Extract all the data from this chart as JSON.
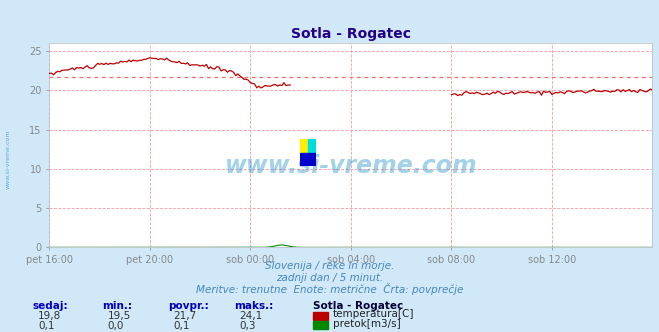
{
  "title": "Sotla - Rogatec",
  "bg_color": "#d0e8f8",
  "plot_bg_color": "#ffffff",
  "grid_color": "#e8a0a0",
  "x_ticks_labels": [
    "pet 16:00",
    "pet 20:00",
    "sob 00:00",
    "sob 04:00",
    "sob 08:00",
    "sob 12:00"
  ],
  "x_ticks_pos": [
    0.0,
    0.1667,
    0.3333,
    0.5,
    0.6667,
    0.8333
  ],
  "y_ticks": [
    0,
    5,
    10,
    15,
    20,
    25
  ],
  "ylim": [
    0,
    26
  ],
  "xlim": [
    0,
    1
  ],
  "temp_color": "#bb0000",
  "flow_color": "#008800",
  "avg_line_color": "#ff6666",
  "watermark_color": "#3399cc",
  "subtitle1": "Slovenija / reke in morje.",
  "subtitle2": "zadnji dan / 5 minut.",
  "subtitle3": "Meritve: trenutne  Enote: metrične  Črta: povprečje",
  "table_headers": [
    "sedaj:",
    "min.:",
    "povpr.:",
    "maks.:"
  ],
  "table_row1_values": [
    "19,8",
    "19,5",
    "21,7",
    "24,1"
  ],
  "table_row2_values": [
    "0,1",
    "0,0",
    "0,1",
    "0,3"
  ],
  "station_name": "Sotla - Rogatec",
  "legend_temp": "temperatura[C]",
  "legend_flow": "pretok[m3/s]",
  "avg_temp": 21.7,
  "ylim_max": 26,
  "flow_max_value": 0.3,
  "n_points": 289
}
